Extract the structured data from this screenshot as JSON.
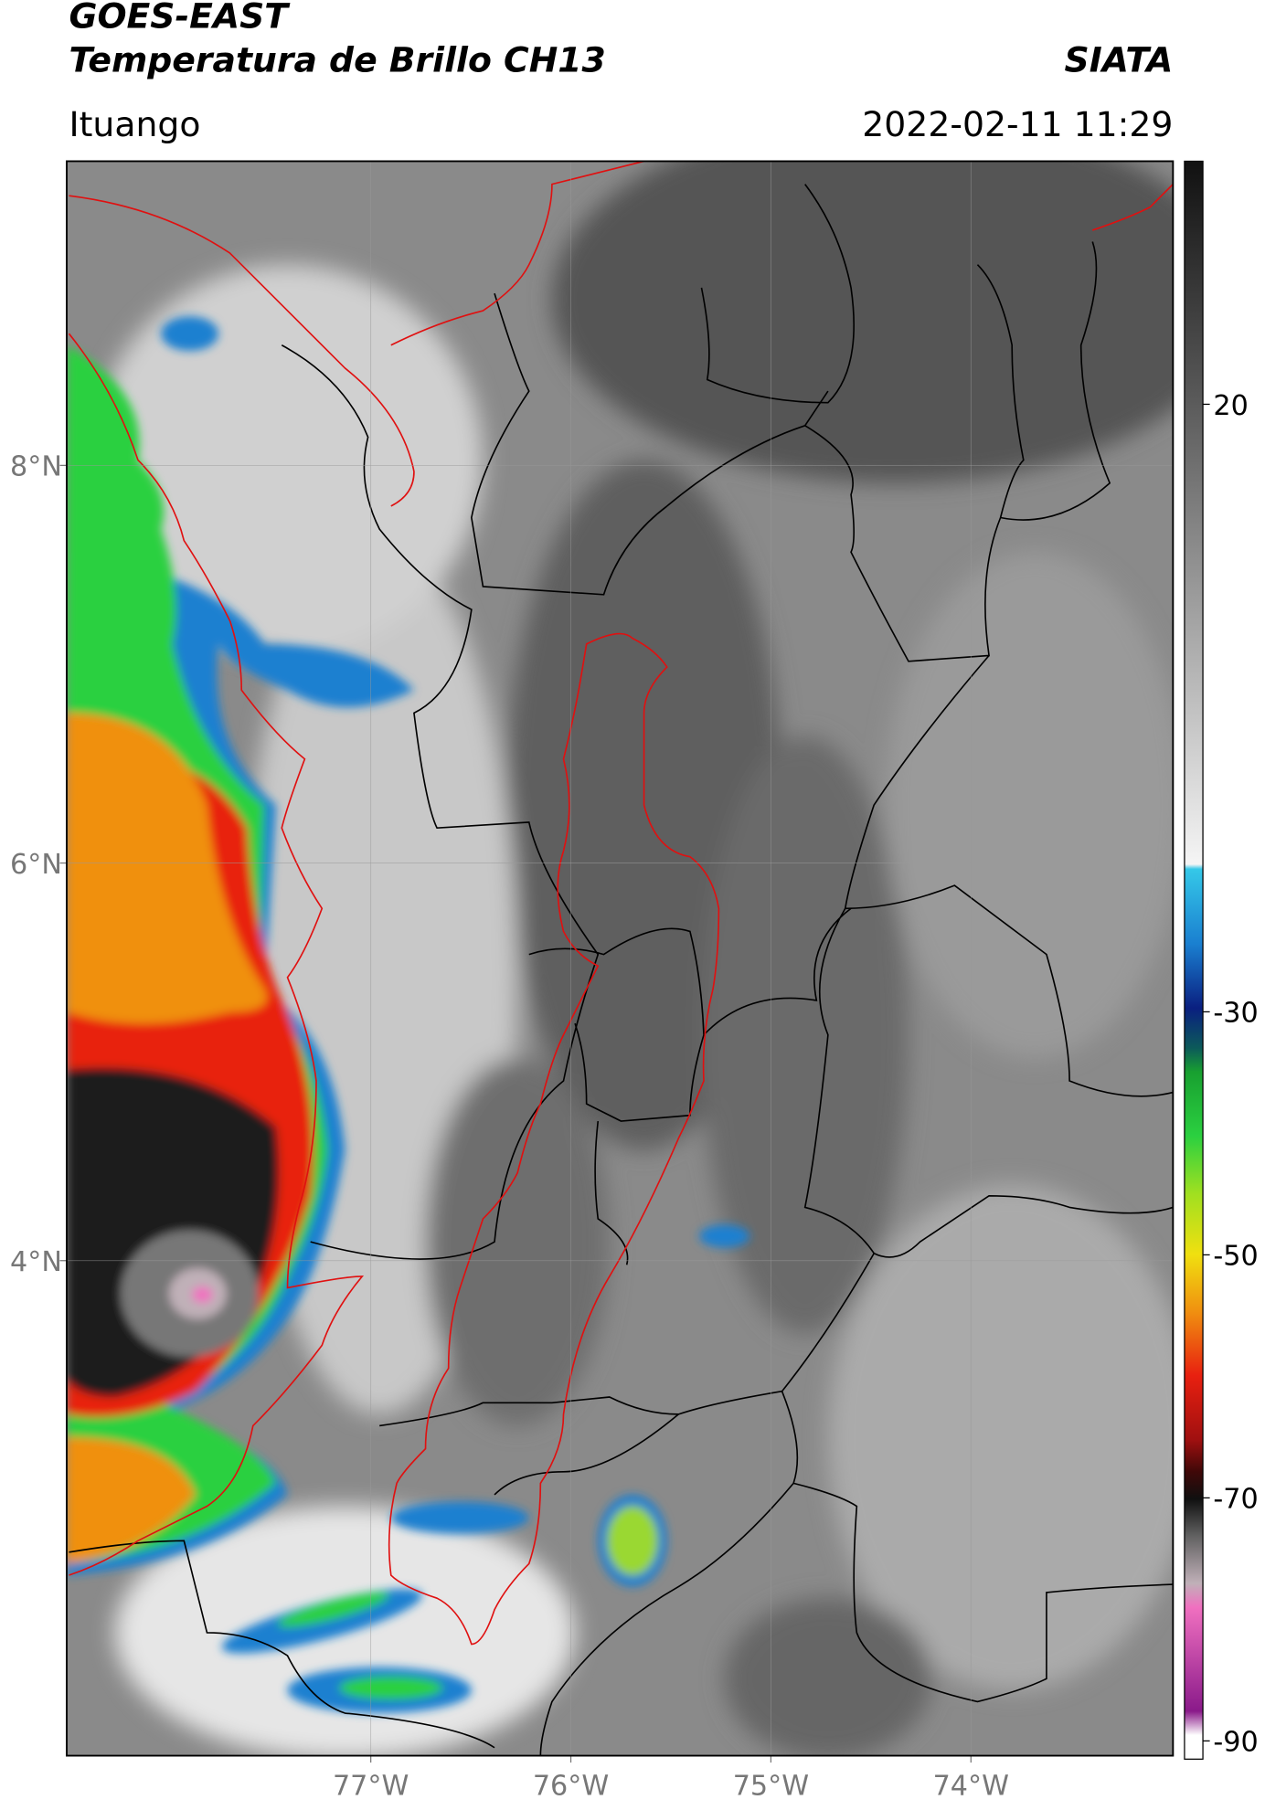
{
  "header": {
    "title_line1": "GOES-EAST",
    "title_line2": "Temperatura de Brillo CH13",
    "source": "SIATA",
    "location": "Ituango",
    "timestamp": "2022-02-11 11:29"
  },
  "map": {
    "xlim": [
      -78.52,
      -72.99
    ],
    "ylim": [
      1.51,
      9.53
    ],
    "xticks": [
      {
        "value": -77,
        "label": "77°W"
      },
      {
        "value": -76,
        "label": "76°W"
      },
      {
        "value": -75,
        "label": "75°W"
      },
      {
        "value": -74,
        "label": "74°W"
      }
    ],
    "yticks": [
      {
        "value": 4,
        "label": "4°N"
      },
      {
        "value": 6,
        "label": "6°N"
      },
      {
        "value": 8,
        "label": "8°N"
      }
    ],
    "grid": true
  },
  "colorbar": {
    "lim": [
      -91.5,
      40
    ],
    "ticks": [
      20,
      -30,
      -50,
      -70,
      -90
    ]
  }
}
